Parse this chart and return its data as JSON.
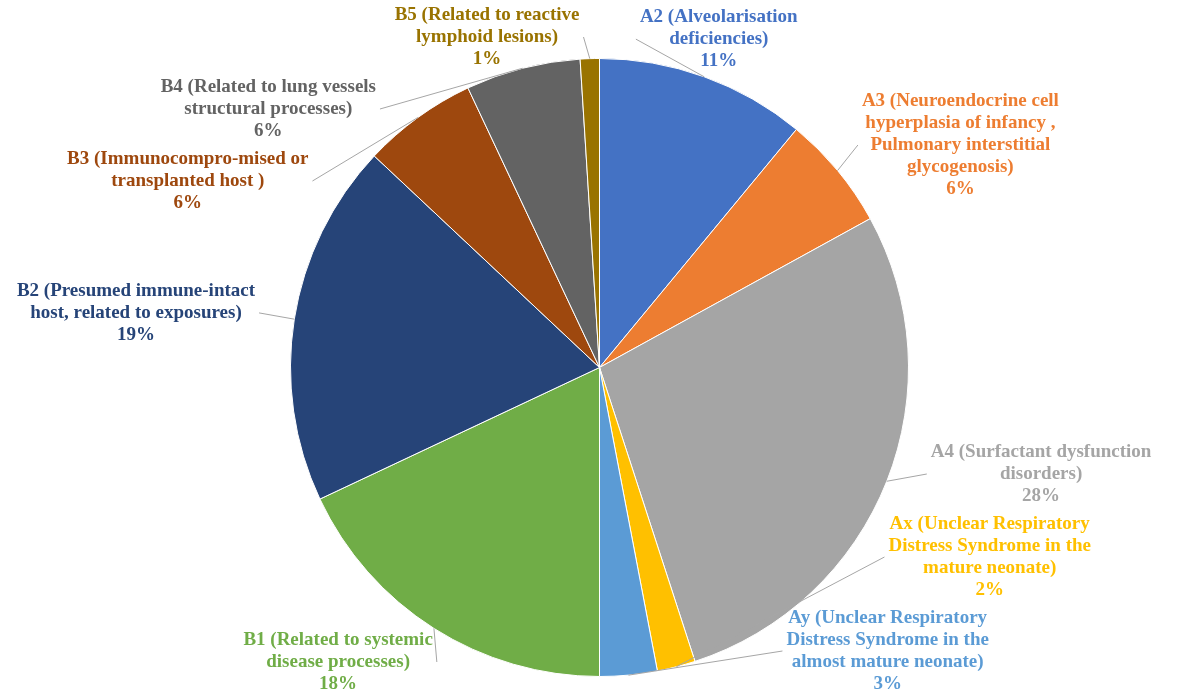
{
  "chart_data": {
    "type": "pie",
    "categories": [
      "A2 (Alveolarisation deficiencies)",
      "A3 (Neuroendocrine cell hyperplasia of infancy , Pulmonary interstitial glycogenosis)",
      "A4 (Surfactant dysfunction disorders)",
      "Ax (Unclear Respiratory Distress Syndrome in the mature neonate)",
      "Ay (Unclear Respiratory Distress Syndrome in the almost mature neonate)",
      "B1 (Related to systemic disease processes)",
      "B2 (Presumed immune-intact host, related to exposures)",
      "B3 (Immunocompro-mised or transplanted host )",
      "B4 (Related to lung vessels structural processes)",
      "B5 (Related to reactive lymphoid lesions)"
    ],
    "values": [
      11,
      6,
      28,
      2,
      3,
      18,
      19,
      6,
      6,
      1
    ],
    "colors": [
      "#4472c4",
      "#ed7d31",
      "#a5a5a5",
      "#ffc000",
      "#5b9bd5",
      "#70ad47",
      "#264478",
      "#9e480e",
      "#636363",
      "#997300"
    ],
    "value_labels": [
      "11%",
      "6%",
      "28%",
      "2%",
      "3%",
      "18%",
      "19%",
      "6%",
      "6%",
      "1%"
    ],
    "legend": false
  }
}
